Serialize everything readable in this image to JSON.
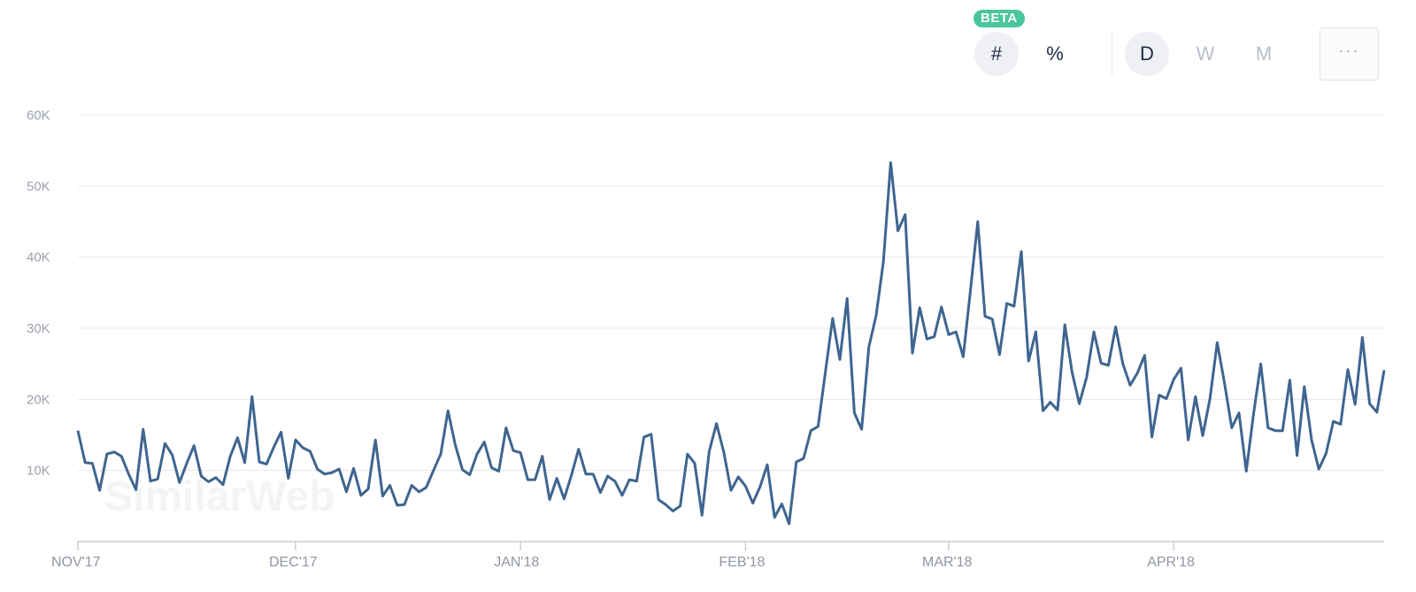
{
  "controls": {
    "beta_label": "BETA",
    "count_label": "#",
    "percent_label": "%",
    "day_label": "D",
    "week_label": "W",
    "month_label": "M",
    "more_label": "···"
  },
  "watermark": "SimilarWeb",
  "colors": {
    "line": "#3f6590",
    "accent": "#4bc59a"
  },
  "chart_data": {
    "type": "line",
    "title": "",
    "xlabel": "",
    "ylabel": "",
    "x_start": "2017-11-01",
    "x_end": "2018-04-30",
    "ylim": [
      0,
      60000
    ],
    "y_ticks": [
      10000,
      20000,
      30000,
      40000,
      50000,
      60000
    ],
    "y_tick_labels": [
      "10K",
      "20K",
      "30K",
      "40K",
      "50K",
      "60K"
    ],
    "x_ticks": [
      {
        "date": "2017-11-01",
        "label": "NOV'17"
      },
      {
        "date": "2017-12-01",
        "label": "DEC'17"
      },
      {
        "date": "2018-01-01",
        "label": "JAN'18"
      },
      {
        "date": "2018-02-01",
        "label": "FEB'18"
      },
      {
        "date": "2018-03-01",
        "label": "MAR'18"
      },
      {
        "date": "2018-04-01",
        "label": "APR'18"
      }
    ],
    "grid": true,
    "series": [
      {
        "values": [
          15600,
          11100,
          11000,
          7200,
          12300,
          12600,
          12000,
          9500,
          7300,
          15800,
          8500,
          8800,
          13800,
          12200,
          8300,
          11000,
          13500,
          9200,
          8400,
          9000,
          8000,
          12000,
          14600,
          11100,
          20400,
          11200,
          10900,
          13300,
          15400,
          8900,
          14300,
          13200,
          12700,
          10200,
          9500,
          9700,
          10200,
          7000,
          10300,
          6500,
          7400,
          14300,
          6400,
          7900,
          5100,
          5200,
          7900,
          7000,
          7600,
          10000,
          12300,
          18400,
          13600,
          10100,
          9400,
          12300,
          14000,
          10400,
          9900,
          16000,
          12800,
          12500,
          8700,
          8700,
          12000,
          5900,
          8900,
          6000,
          9300,
          13000,
          9500,
          9500,
          6900,
          9200,
          8500,
          6500,
          8700,
          8500,
          14700,
          15100,
          5900,
          5200,
          4300,
          5000,
          12300,
          11000,
          3700,
          12700,
          16600,
          12600,
          7200,
          9100,
          7800,
          5400,
          7700,
          10800,
          3400,
          5300,
          2500,
          11200,
          11700,
          15600,
          16200,
          23800,
          31400,
          25600,
          34200,
          18100,
          15800,
          27400,
          31800,
          39400,
          53300,
          43700,
          46000,
          26500,
          32900,
          28500,
          28800,
          33000,
          29100,
          29500,
          26000,
          35400,
          45000,
          31700,
          31300,
          26300,
          33500,
          33100,
          40800,
          25400,
          29500,
          18400,
          19600,
          18500,
          30500,
          23800,
          19400,
          23100,
          29500,
          25100,
          24800,
          30200,
          25000,
          22000,
          23700,
          26200,
          14700,
          20600,
          20100,
          22800,
          24400,
          14300,
          20400,
          14900,
          20100,
          28000,
          22300,
          16000,
          18100,
          9900,
          17900,
          25000,
          16000,
          15600,
          15600,
          22700,
          12100,
          21800,
          14300,
          10200,
          12400,
          16900,
          16500,
          24200,
          19300,
          28700,
          19400,
          18200,
          24100
        ]
      }
    ]
  }
}
